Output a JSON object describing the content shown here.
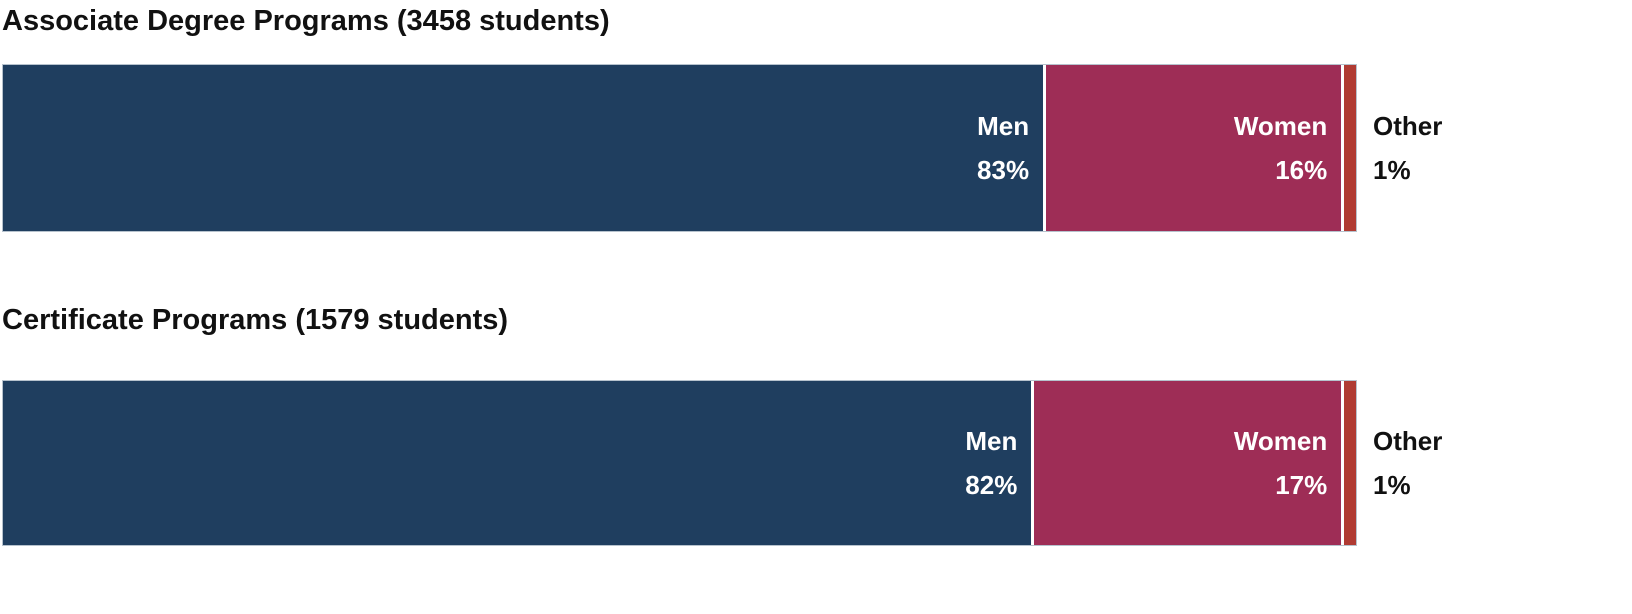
{
  "page": {
    "background": "#ffffff"
  },
  "colors": {
    "bar_border": "#b6c2cd",
    "title_text": "#111111",
    "inside_label_text": "#ffffff",
    "outside_label_text": "#111111"
  },
  "chart_data": [
    {
      "type": "bar",
      "orientation": "horizontal_stacked",
      "title": "Associate Degree Programs (3458 students)",
      "students_total": 3458,
      "unit": "%",
      "categories": [
        "Men",
        "Women",
        "Other"
      ],
      "values": [
        83,
        16,
        1
      ],
      "xlim": [
        0,
        100
      ],
      "grid": false,
      "legend": "labels-on-bars",
      "segments": [
        {
          "label": "Men",
          "value": 83,
          "value_label": "83%",
          "color": "#1f3e5f",
          "label_placement": "inside-right"
        },
        {
          "label": "Women",
          "value": 16,
          "value_label": "16%",
          "color": "#9e2d56",
          "label_placement": "inside-right"
        },
        {
          "label": "Other",
          "value": 1,
          "value_label": "1%",
          "color": "#b03b33",
          "label_placement": "outside-right"
        }
      ]
    },
    {
      "type": "bar",
      "orientation": "horizontal_stacked",
      "title": "Certificate Programs (1579 students)",
      "students_total": 1579,
      "unit": "%",
      "categories": [
        "Men",
        "Women",
        "Other"
      ],
      "values": [
        82,
        17,
        1
      ],
      "xlim": [
        0,
        100
      ],
      "grid": false,
      "legend": "labels-on-bars",
      "segments": [
        {
          "label": "Men",
          "value": 82,
          "value_label": "82%",
          "color": "#1f3e5f",
          "label_placement": "inside-right"
        },
        {
          "label": "Women",
          "value": 17,
          "value_label": "17%",
          "color": "#9e2d56",
          "label_placement": "inside-right"
        },
        {
          "label": "Other",
          "value": 1,
          "value_label": "1%",
          "color": "#b03b33",
          "label_placement": "outside-right"
        }
      ]
    }
  ]
}
